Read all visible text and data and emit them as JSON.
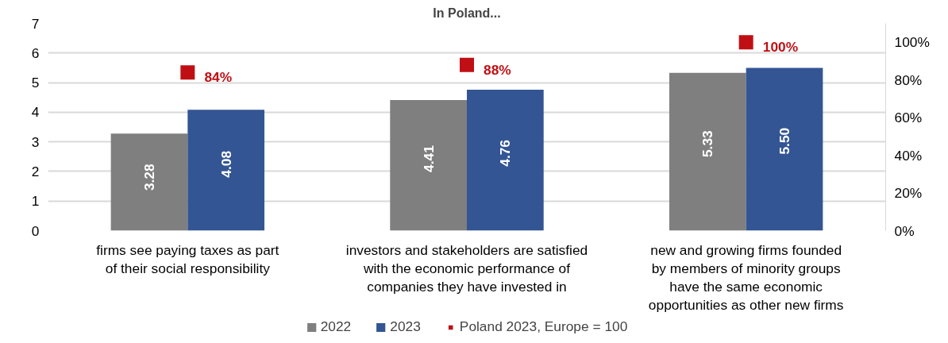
{
  "chart_data": {
    "type": "bar",
    "title": "In Poland...",
    "categories": [
      "firms see paying taxes as part\nof their social responsibility",
      "investors and stakeholders are satisfied\nwith the economic performance of\ncompanies they have invested in",
      "new and growing firms founded\nby members of minority groups\nhave the same economic\nopportunities as other new firms"
    ],
    "series": [
      {
        "name": "2022",
        "color": "#7f7f7f",
        "values": [
          3.28,
          4.41,
          5.33
        ],
        "value_labels": [
          "3.28",
          "4.41",
          "5.33"
        ]
      },
      {
        "name": "2023",
        "color": "#335593",
        "values": [
          4.08,
          4.76,
          5.5
        ],
        "value_labels": [
          "4.08",
          "4.76",
          "5.50"
        ]
      },
      {
        "name": "Poland 2023, Europe = 100",
        "type": "scatter",
        "axis": "y2",
        "marker": "square",
        "color": "#c00f14",
        "values": [
          84,
          88,
          100
        ],
        "value_labels": [
          "84%",
          "88%",
          "100%"
        ]
      }
    ],
    "ylim": [
      0,
      7
    ],
    "yticks": [
      0,
      1,
      2,
      3,
      4,
      5,
      6,
      7
    ],
    "y2lim": [
      0,
      110
    ],
    "y2ticks": [
      {
        "value": 0,
        "label": "0%"
      },
      {
        "value": 20,
        "label": "20%"
      },
      {
        "value": 40,
        "label": "40%"
      },
      {
        "value": 60,
        "label": "60%"
      },
      {
        "value": 80,
        "label": "80%"
      },
      {
        "value": 100,
        "label": "100%"
      }
    ],
    "grid": "y",
    "legend": "bottom"
  }
}
